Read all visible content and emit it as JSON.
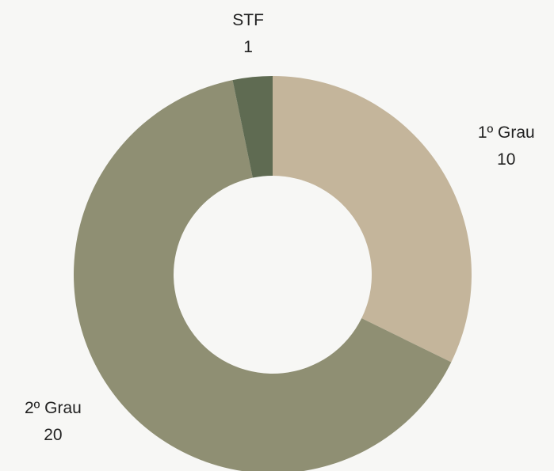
{
  "chart_data": {
    "type": "donut",
    "categories": [
      "1º Grau",
      "2º Grau",
      "STF"
    ],
    "values": [
      10,
      20,
      1
    ],
    "colors": [
      "#c4b59b",
      "#8f8f73",
      "#5f6b52"
    ]
  }
}
